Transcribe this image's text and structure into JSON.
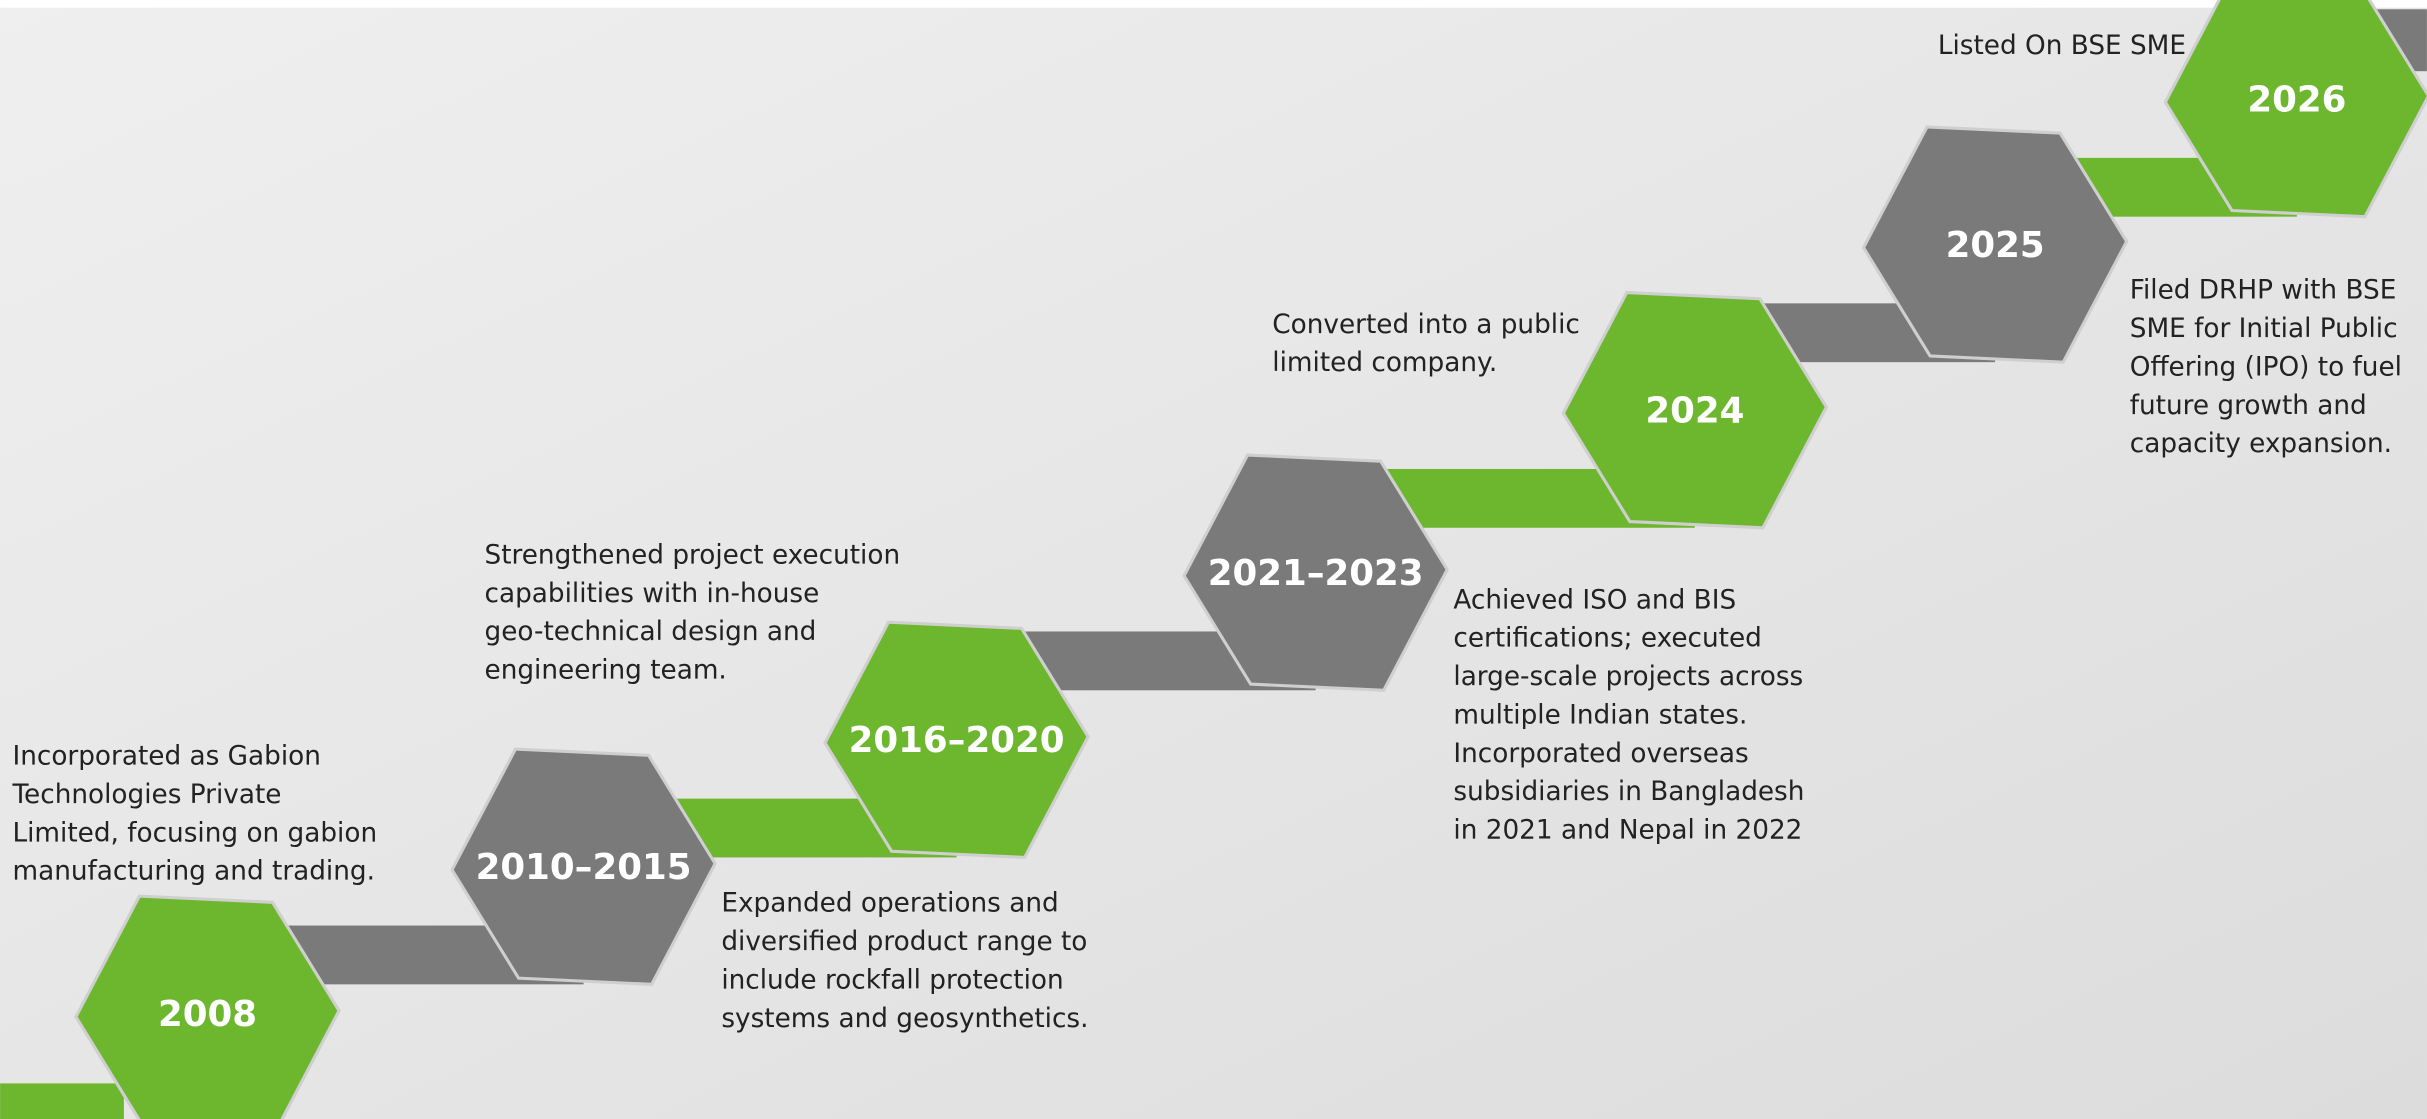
{
  "milestones": [
    {
      "year": "2008",
      "lines": [
        "Incorporated as Gabion",
        "Technologies Private",
        "Limited, focusing on gabion",
        "manufacturing and trading."
      ]
    },
    {
      "year": "2010–2015",
      "lines": [
        "Strengthened project execution",
        "capabilities with in-house",
        "geo-technical design and",
        "engineering team."
      ]
    },
    {
      "year": "2016–2020",
      "lines": [
        "Expanded operations and",
        "diversified product range to",
        "include rockfall protection",
        "systems and geosynthetics."
      ]
    },
    {
      "year": "2021–2023",
      "lines": [
        "Achieved ISO and BIS",
        "certifications; executed",
        "large-scale projects across",
        "multiple Indian states.",
        "Incorporated overseas",
        "subsidiaries in Bangladesh",
        "in 2021 and Nepal in 2022"
      ]
    },
    {
      "year": "2024",
      "lines": [
        "Converted into a public",
        "limited company."
      ]
    },
    {
      "year": "2025",
      "lines": [
        "Filed DRHP with BSE",
        "SME for Initial Public",
        "Offering (IPO) to fuel",
        "future growth and",
        "capacity expansion."
      ]
    },
    {
      "year": "2026",
      "lines": [
        "Listed On BSE SME"
      ]
    }
  ]
}
